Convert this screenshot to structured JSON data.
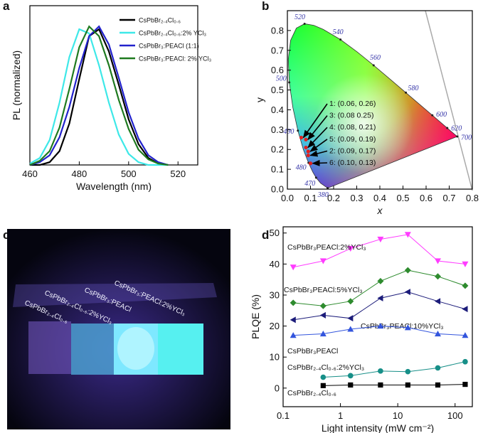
{
  "chart_data": [
    {
      "type": "line",
      "panel_label": "a",
      "xlabel": "Wavelength (nm)",
      "ylabel": "PL (normalized)",
      "x": [
        460,
        464,
        468,
        472,
        476,
        480,
        484,
        488,
        492,
        496,
        500,
        504,
        508,
        512,
        516
      ],
      "series": [
        {
          "name": "CsPbBr₂.₄Cl₀.₆",
          "color": "#000000",
          "values": [
            0,
            0,
            0.02,
            0.1,
            0.3,
            0.62,
            0.93,
            0.98,
            0.82,
            0.58,
            0.33,
            0.15,
            0.05,
            0.01,
            0
          ]
        },
        {
          "name": "CsPbBr₂.₄Cl₀.₆:2% YCl₃",
          "color": "#3ee8e8",
          "values": [
            0.01,
            0.05,
            0.18,
            0.45,
            0.78,
            0.98,
            0.95,
            0.72,
            0.45,
            0.22,
            0.08,
            0.02,
            0,
            0,
            0
          ]
        },
        {
          "name": "CsPbBr₃:PEACl (1:1)",
          "color": "#2222cc",
          "values": [
            0,
            0.02,
            0.07,
            0.2,
            0.42,
            0.7,
            0.93,
            1.0,
            0.87,
            0.63,
            0.38,
            0.19,
            0.07,
            0.02,
            0
          ]
        },
        {
          "name": "CsPbBr₃:PEACl: 2% YCl₃",
          "color": "#1f7a1f",
          "values": [
            0,
            0.03,
            0.1,
            0.27,
            0.55,
            0.85,
            1.0,
            0.93,
            0.72,
            0.47,
            0.26,
            0.11,
            0.04,
            0.01,
            0
          ]
        }
      ],
      "xlim": [
        460,
        528
      ],
      "xticks": [
        460,
        480,
        500,
        520
      ],
      "ylim": [
        0,
        1.15
      ],
      "legend": "upper right"
    },
    {
      "type": "cie",
      "panel_label": "b",
      "xlabel": "x",
      "ylabel": "y",
      "locus": {
        "wavelengths": [
          380,
          null,
          470,
          null,
          480,
          null,
          490,
          null,
          500,
          null,
          null,
          null,
          520,
          null,
          null,
          540,
          null,
          560,
          null,
          580,
          null,
          600,
          620,
          700
        ],
        "x": [
          0.1741,
          0.144,
          0.1241,
          0.1096,
          0.0913,
          0.0687,
          0.0454,
          0.0235,
          0.0082,
          0.0039,
          0.0139,
          0.0389,
          0.0743,
          0.1142,
          0.1547,
          0.2296,
          0.3016,
          0.3731,
          0.4441,
          0.5125,
          0.5752,
          0.627,
          0.6915,
          0.7347
        ],
        "y": [
          0.005,
          0.0297,
          0.0578,
          0.0868,
          0.1327,
          0.2007,
          0.295,
          0.4127,
          0.5384,
          0.6548,
          0.7502,
          0.812,
          0.8338,
          0.8262,
          0.8059,
          0.7543,
          0.6923,
          0.6245,
          0.5547,
          0.4866,
          0.4242,
          0.3725,
          0.3083,
          0.2653
        ]
      },
      "points": {
        "color": "#e02020",
        "x": [
          0.06,
          0.08,
          0.08,
          0.09,
          0.09,
          0.1
        ],
        "y": [
          0.26,
          0.25,
          0.21,
          0.19,
          0.17,
          0.13
        ]
      },
      "annotations": [
        "1: (0.06, 0.26)",
        "3: (0.08 0.25)",
        "4: (0.08, 0.21)",
        "5: (0.09, 0.19)",
        "2: (0.09, 0.17)",
        "6: (0.10, 0.13)"
      ],
      "xlim": [
        0,
        0.8
      ],
      "xticks": [
        {
          "value": 0,
          "label": "0.0"
        },
        0.1,
        0.2,
        0.3,
        0.4,
        0.5,
        0.6,
        0.7,
        0.8
      ],
      "ylim": [
        0,
        0.9
      ],
      "yticks": [
        {
          "value": 0,
          "label": "0.0"
        },
        0.1,
        0.2,
        0.3,
        0.4,
        0.5,
        0.6,
        0.7,
        0.8
      ]
    },
    {
      "type": "line",
      "panel_label": "d",
      "xlabel": "Light intensity (mW cm⁻²)",
      "ylabel": "PLQE (%)",
      "xscale": "log",
      "x": [
        0.15,
        0.5,
        1.5,
        5,
        15,
        50,
        150
      ],
      "series": [
        {
          "name": "CsPbBr₃PEACl:2%YCl₃",
          "color": "#ff3cff",
          "marker": "v",
          "values": [
            39,
            41,
            45,
            48,
            49.5,
            41,
            40
          ]
        },
        {
          "name": "CsPbBr₃PEACl:5%YCl₃",
          "color": "#2e8b2e",
          "marker": "D",
          "values": [
            27.5,
            26.5,
            28,
            34.5,
            38,
            36,
            33
          ]
        },
        {
          "name": "CsPbBr₃PEACl:10%YCl₃",
          "color": "#1c1c7a",
          "marker": "<",
          "values": [
            22,
            23.5,
            22.5,
            29,
            31,
            28,
            25.5
          ]
        },
        {
          "name": "CsPbBr₃PEACl",
          "color": "#3355dd",
          "marker": "^",
          "values": [
            17,
            17.5,
            19,
            20,
            19.5,
            17.5,
            17
          ]
        },
        {
          "name": "CsPbBr₂.₄Cl₀.₆:2%YCl₃",
          "color": "#178f88",
          "marker": "o",
          "values": [
            null,
            3.5,
            4,
            5.5,
            5.3,
            6.5,
            8.5
          ]
        },
        {
          "name": "CsPbBr₂.₄Cl₀.₆",
          "color": "#000000",
          "marker": "s",
          "values": [
            null,
            0.8,
            1,
            1,
            1,
            1,
            1.2
          ]
        }
      ],
      "xlim": [
        0.1,
        200
      ],
      "xticks": [
        0.1,
        1,
        10,
        100
      ],
      "ylim": [
        -6,
        52
      ],
      "yticks": [
        0,
        10,
        20,
        30,
        40,
        50
      ]
    }
  ],
  "photo": {
    "panel_label": "c",
    "labels": [
      "CsPbBr₂.₄Cl₀.₆",
      "CsPbBr₂.₄Cl₀.₆:2%YCl₃",
      "CsPbBr₃:PEACl",
      "CsPbBr₃:PEACl:2%YCl₃"
    ]
  }
}
